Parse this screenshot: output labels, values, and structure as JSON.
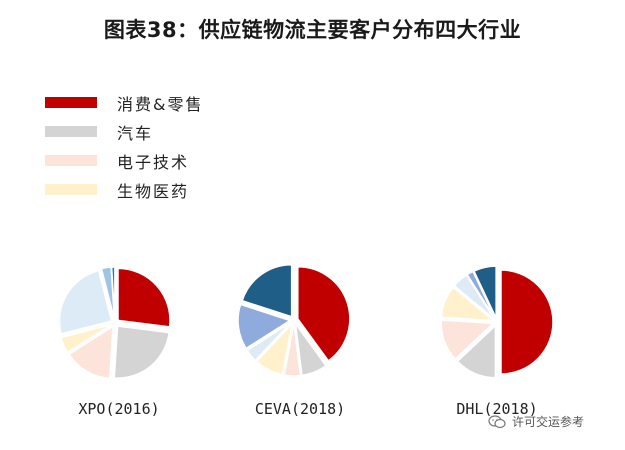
{
  "title": "图表38：供应链物流主要客户分布四大行业",
  "watermark": "许可交运参考",
  "legend": [
    {
      "label": "消费&零售",
      "color": "#C00000"
    },
    {
      "label": "汽车",
      "color": "#D4D4D4"
    },
    {
      "label": "电子技术",
      "color": "#FCE4DA"
    },
    {
      "label": "生物医药",
      "color": "#FFF1CC"
    }
  ],
  "chart_data": [
    {
      "type": "pie",
      "label": "XPO(2016)",
      "slices": [
        {
          "category": "消费&零售",
          "value": 27,
          "color": "#C00000"
        },
        {
          "category": "汽车",
          "value": 24,
          "color": "#D4D4D4"
        },
        {
          "category": "电子技术",
          "value": 15,
          "color": "#FCE4DA"
        },
        {
          "category": "生物医药",
          "value": 5,
          "color": "#FFF1CC"
        },
        {
          "category": "",
          "value": 25,
          "color": "#DDEBF7"
        },
        {
          "category": "",
          "value": 3,
          "color": "#9DC3E6"
        },
        {
          "category": "",
          "value": 1,
          "color": "#2E75B6"
        }
      ]
    },
    {
      "type": "pie",
      "label": "CEVA(2018)",
      "slices": [
        {
          "category": "消费&零售",
          "value": 40,
          "color": "#C00000"
        },
        {
          "category": "汽车",
          "value": 8,
          "color": "#D4D4D4"
        },
        {
          "category": "电子技术",
          "value": 5,
          "color": "#FCE4DA"
        },
        {
          "category": "生物医药",
          "value": 9,
          "color": "#FFF1CC"
        },
        {
          "category": "",
          "value": 4,
          "color": "#DEEBF7"
        },
        {
          "category": "",
          "value": 14,
          "color": "#8FAADC"
        },
        {
          "category": "",
          "value": 20,
          "color": "#1F5E87"
        }
      ]
    },
    {
      "type": "pie",
      "label": "DHL(2018)",
      "slices": [
        {
          "category": "消费&零售",
          "value": 50,
          "color": "#C00000"
        },
        {
          "category": "汽车",
          "value": 13,
          "color": "#D4D4D4"
        },
        {
          "category": "电子技术",
          "value": 13,
          "color": "#FCE4DA"
        },
        {
          "category": "生物医药",
          "value": 10,
          "color": "#FFF1CC"
        },
        {
          "category": "",
          "value": 5,
          "color": "#DEEBF7"
        },
        {
          "category": "",
          "value": 2,
          "color": "#8FAADC"
        },
        {
          "category": "",
          "value": 7,
          "color": "#1F5E87"
        }
      ]
    }
  ]
}
